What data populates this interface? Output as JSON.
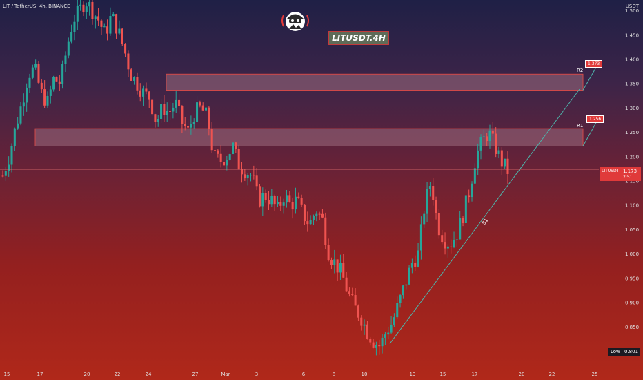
{
  "header": {
    "symbol_label": "LIT / TetherUS, 4h, BINANCE",
    "currency": "USDT"
  },
  "title_box": "LITUSDT.4H",
  "price_tag": {
    "symbol": "LITUSDT",
    "value": "1.173",
    "countdown": "2:51"
  },
  "low_tag": {
    "label": "Low",
    "value": "0.801"
  },
  "levels": {
    "r1": {
      "label": "R1",
      "value": "1.256"
    },
    "r2": {
      "label": "R2",
      "value": "1.373"
    },
    "s1": {
      "label": "S1"
    }
  },
  "colors": {
    "bullish": "#26a69a",
    "bearish": "#ef5350",
    "zone": "#9c6b7d",
    "zone_border": "#d24848",
    "trendline": "#4db6ac"
  },
  "chart_data": {
    "type": "candlestick",
    "title": "LITUSDT.4H",
    "x_ticks": [
      "15",
      "17",
      "20",
      "22",
      "24",
      "27",
      "Mar",
      "3",
      "6",
      "8",
      "10",
      "13",
      "15",
      "17",
      "20",
      "22",
      "25"
    ],
    "y_ticks": [
      "1.500",
      "1.450",
      "1.400",
      "1.350",
      "1.300",
      "1.250",
      "1.200",
      "1.150",
      "1.100",
      "1.050",
      "1.000",
      "0.950",
      "0.900",
      "0.850",
      "0.800"
    ],
    "ylim": [
      0.79,
      1.51
    ],
    "zones": [
      {
        "name": "R2",
        "from": 1.336,
        "to": 1.369
      },
      {
        "name": "R1",
        "from": 1.221,
        "to": 1.257
      }
    ],
    "trendline_s1": {
      "from": 0.815,
      "to": 1.338
    },
    "last_price": 1.173,
    "low": 0.801,
    "close_path": [
      1.16,
      1.2,
      1.26,
      1.31,
      1.37,
      1.38,
      1.33,
      1.31,
      1.36,
      1.35,
      1.42,
      1.48,
      1.5,
      1.52,
      1.5,
      1.48,
      1.45,
      1.49,
      1.46,
      1.42,
      1.37,
      1.35,
      1.33,
      1.32,
      1.27,
      1.3,
      1.29,
      1.31,
      1.27,
      1.25,
      1.29,
      1.3,
      1.28,
      1.2,
      1.19,
      1.2,
      1.22,
      1.18,
      1.17,
      1.16,
      1.11,
      1.12,
      1.11,
      1.09,
      1.12,
      1.1,
      1.11,
      1.08,
      1.06,
      1.09,
      1.07,
      1.0,
      0.98,
      0.96,
      0.92,
      0.89,
      0.87,
      0.84,
      0.82,
      0.81,
      0.84,
      0.86,
      0.9,
      0.94,
      0.98,
      1.0,
      1.1,
      1.15,
      1.06,
      1.03,
      1.02,
      1.04,
      1.08,
      1.13,
      1.2,
      1.23,
      1.25,
      1.22,
      1.19,
      1.17
    ]
  }
}
